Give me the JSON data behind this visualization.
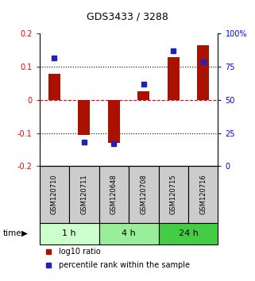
{
  "title": "GDS3433 / 3288",
  "samples": [
    "GSM120710",
    "GSM120711",
    "GSM120648",
    "GSM120708",
    "GSM120715",
    "GSM120716"
  ],
  "log10_ratio": [
    0.08,
    -0.105,
    -0.13,
    0.025,
    0.13,
    0.165
  ],
  "percentile_rank": [
    82,
    18,
    17,
    62,
    87,
    79
  ],
  "time_groups": [
    {
      "label": "1 h",
      "samples": [
        0,
        1
      ],
      "color": "#ccffcc"
    },
    {
      "label": "4 h",
      "samples": [
        2,
        3
      ],
      "color": "#99ee99"
    },
    {
      "label": "24 h",
      "samples": [
        4,
        5
      ],
      "color": "#44cc44"
    }
  ],
  "bar_color": "#aa1100",
  "dot_color": "#2222bb",
  "left_ylim": [
    -0.2,
    0.2
  ],
  "right_ylim": [
    0,
    100
  ],
  "left_yticks": [
    -0.2,
    -0.1,
    0.0,
    0.1,
    0.2
  ],
  "right_yticks": [
    0,
    25,
    50,
    75,
    100
  ],
  "left_yticklabels": [
    "-0.2",
    "-0.1",
    "0",
    "0.1",
    "0.2"
  ],
  "right_yticklabels": [
    "0",
    "25",
    "50",
    "75",
    "100%"
  ],
  "hlines": [
    0.1,
    0.0,
    -0.1
  ],
  "hline_styles": [
    "dotted",
    "dashed",
    "dotted"
  ],
  "hline_colors": [
    "black",
    "red",
    "black"
  ],
  "bg_color": "#ffffff",
  "sample_box_color": "#cccccc",
  "legend_red_label": "log10 ratio",
  "legend_blue_label": "percentile rank within the sample"
}
